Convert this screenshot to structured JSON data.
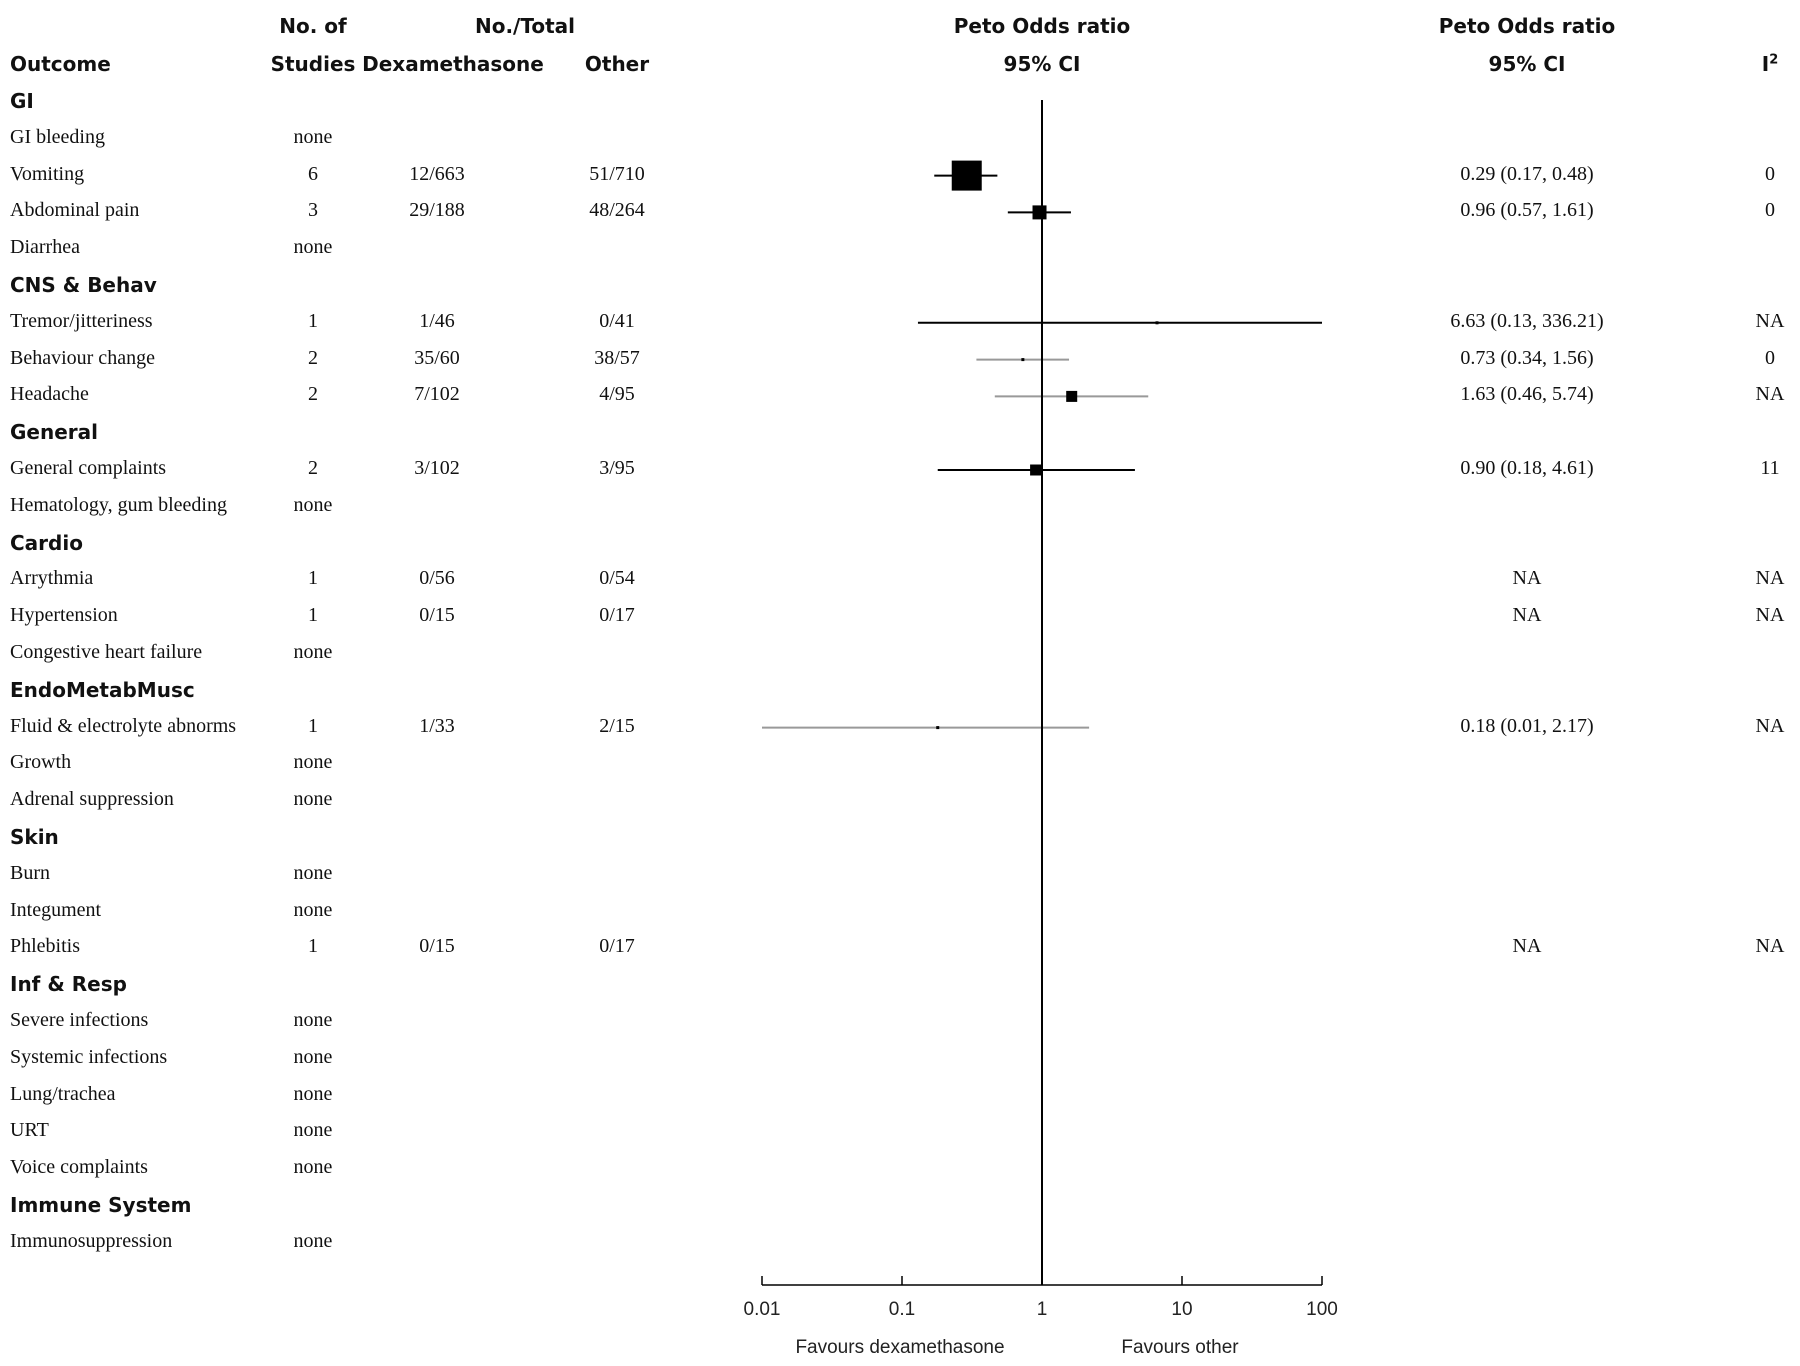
{
  "header": {
    "outcome": "Outcome",
    "studies_line1": "No. of",
    "studies_line2": "Studies",
    "total_line1": "No./Total",
    "dex": "Dexamethasone",
    "other": "Other",
    "plot_line1": "Peto Odds ratio",
    "plot_line2": "95% CI",
    "ci_line1": "Peto Odds ratio",
    "ci_line2": "95% CI",
    "i2": "I",
    "i2_sup": "2"
  },
  "chart_data": {
    "type": "forest",
    "xscale": "log",
    "xlim": [
      0.01,
      100
    ],
    "xticks": [
      "0.01",
      "0.1",
      "1",
      "10",
      "100"
    ],
    "reference_line": 1,
    "favours_left": "Favours dexamethasone",
    "favours_right": "Favours other",
    "rows": [
      {
        "kind": "category",
        "label": "GI"
      },
      {
        "kind": "outcome",
        "label": "GI bleeding",
        "studies": "none"
      },
      {
        "kind": "outcome",
        "label": "Vomiting",
        "studies": "6",
        "dex": "12/663",
        "other": "51/710",
        "or": 0.29,
        "lo": 0.17,
        "hi": 0.48,
        "ci_text": "0.29 (0.17, 0.48)",
        "i2": "0",
        "weight": "large",
        "color": "#000000"
      },
      {
        "kind": "outcome",
        "label": "Abdominal pain",
        "studies": "3",
        "dex": "29/188",
        "other": "48/264",
        "or": 0.96,
        "lo": 0.57,
        "hi": 1.61,
        "ci_text": "0.96 (0.57, 1.61)",
        "i2": "0",
        "weight": "medium",
        "color": "#000000"
      },
      {
        "kind": "outcome",
        "label": "Diarrhea",
        "studies": "none"
      },
      {
        "kind": "category",
        "label": "CNS & Behav"
      },
      {
        "kind": "outcome",
        "label": "Tremor/jitteriness",
        "studies": "1",
        "dex": "1/46",
        "other": "0/41",
        "or": 6.63,
        "lo": 0.13,
        "hi": 336.21,
        "ci_text": "6.63 (0.13, 336.21)",
        "i2": "NA",
        "weight": "tiny",
        "color": "#000000"
      },
      {
        "kind": "outcome",
        "label": "Behaviour change",
        "studies": "2",
        "dex": "35/60",
        "other": "38/57",
        "or": 0.73,
        "lo": 0.34,
        "hi": 1.56,
        "ci_text": "0.73 (0.34, 1.56)",
        "i2": "0",
        "weight": "tiny",
        "color": "#999999"
      },
      {
        "kind": "outcome",
        "label": "Headache",
        "studies": "2",
        "dex": "7/102",
        "other": "4/95",
        "or": 1.63,
        "lo": 0.46,
        "hi": 5.74,
        "ci_text": "1.63 (0.46, 5.74)",
        "i2": "NA",
        "weight": "small",
        "color": "#999999"
      },
      {
        "kind": "category",
        "label": "General"
      },
      {
        "kind": "outcome",
        "label": "General complaints",
        "studies": "2",
        "dex": "3/102",
        "other": "3/95",
        "or": 0.9,
        "lo": 0.18,
        "hi": 4.61,
        "ci_text": "0.90 (0.18, 4.61)",
        "i2": "11",
        "weight": "small",
        "color": "#000000"
      },
      {
        "kind": "outcome",
        "label": "Hematology, gum bleeding",
        "studies": "none"
      },
      {
        "kind": "category",
        "label": "Cardio"
      },
      {
        "kind": "outcome",
        "label": "Arrythmia",
        "studies": "1",
        "dex": "0/56",
        "other": "0/54",
        "ci_text": "NA",
        "i2": "NA"
      },
      {
        "kind": "outcome",
        "label": "Hypertension",
        "studies": "1",
        "dex": "0/15",
        "other": "0/17",
        "ci_text": "NA",
        "i2": "NA"
      },
      {
        "kind": "outcome",
        "label": "Congestive heart failure",
        "studies": "none"
      },
      {
        "kind": "category",
        "label": "EndoMetabMusc"
      },
      {
        "kind": "outcome",
        "label": "Fluid & electrolyte abnorms",
        "studies": "1",
        "dex": "1/33",
        "other": "2/15",
        "or": 0.18,
        "lo": 0.01,
        "hi": 2.17,
        "ci_text": "0.18 (0.01, 2.17)",
        "i2": "NA",
        "weight": "tiny",
        "color": "#999999"
      },
      {
        "kind": "outcome",
        "label": "Growth",
        "studies": "none"
      },
      {
        "kind": "outcome",
        "label": "Adrenal suppression",
        "studies": "none"
      },
      {
        "kind": "category",
        "label": "Skin"
      },
      {
        "kind": "outcome",
        "label": "Burn",
        "studies": "none"
      },
      {
        "kind": "outcome",
        "label": "Integument",
        "studies": "none"
      },
      {
        "kind": "outcome",
        "label": "Phlebitis",
        "studies": "1",
        "dex": "0/15",
        "other": "0/17",
        "ci_text": "NA",
        "i2": "NA"
      },
      {
        "kind": "category",
        "label": "Inf & Resp"
      },
      {
        "kind": "outcome",
        "label": "Severe infections",
        "studies": "none"
      },
      {
        "kind": "outcome",
        "label": "Systemic infections",
        "studies": "none"
      },
      {
        "kind": "outcome",
        "label": "Lung/trachea",
        "studies": "none"
      },
      {
        "kind": "outcome",
        "label": "URT",
        "studies": "none"
      },
      {
        "kind": "outcome",
        "label": "Voice complaints",
        "studies": "none"
      },
      {
        "kind": "category",
        "label": "Immune System"
      },
      {
        "kind": "outcome",
        "label": "Immunosuppression",
        "studies": "none"
      }
    ]
  }
}
